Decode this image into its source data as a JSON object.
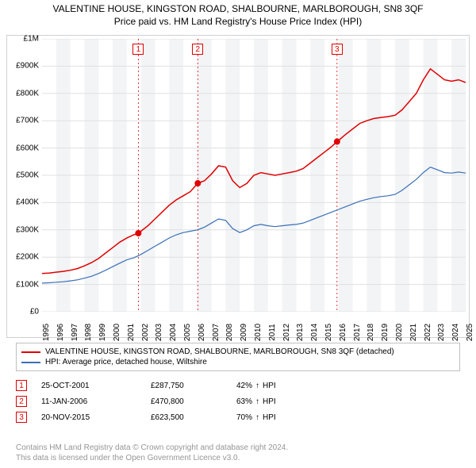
{
  "title": {
    "line1": "VALENTINE HOUSE, KINGSTON ROAD, SHALBOURNE, MARLBOROUGH, SN8 3QF",
    "line2": "Price paid vs. HM Land Registry's House Price Index (HPI)"
  },
  "chart": {
    "type": "line",
    "background_color": "#ffffff",
    "grid_color": "#e0e0e0",
    "grid_band_color": "#f2f4f6",
    "plot_border_color": "#d0d0d0",
    "x": {
      "min": 1995,
      "max": 2025,
      "ticks": [
        1995,
        1996,
        1997,
        1998,
        1999,
        2000,
        2001,
        2002,
        2003,
        2004,
        2005,
        2006,
        2007,
        2008,
        2009,
        2010,
        2011,
        2012,
        2013,
        2014,
        2015,
        2016,
        2017,
        2018,
        2019,
        2020,
        2021,
        2022,
        2023,
        2024,
        2025
      ]
    },
    "y": {
      "min": 0,
      "max": 1000000,
      "ticks": [
        0,
        100000,
        200000,
        300000,
        400000,
        500000,
        600000,
        700000,
        800000,
        900000,
        1000000
      ],
      "labels": [
        "£0",
        "£100K",
        "£200K",
        "£300K",
        "£400K",
        "£500K",
        "£600K",
        "£700K",
        "£800K",
        "£900K",
        "£1M"
      ]
    },
    "series": [
      {
        "id": "property",
        "label": "VALENTINE HOUSE, KINGSTON ROAD, SHALBOURNE, MARLBOROUGH, SN8 3QF (detached)",
        "color": "#e00000",
        "line_width": 1.5,
        "points": [
          [
            1995.0,
            140000
          ],
          [
            1995.5,
            142000
          ],
          [
            1996.0,
            145000
          ],
          [
            1996.5,
            148000
          ],
          [
            1997.0,
            152000
          ],
          [
            1997.5,
            158000
          ],
          [
            1998.0,
            168000
          ],
          [
            1998.5,
            180000
          ],
          [
            1999.0,
            195000
          ],
          [
            1999.5,
            215000
          ],
          [
            2000.0,
            235000
          ],
          [
            2000.5,
            255000
          ],
          [
            2001.0,
            270000
          ],
          [
            2001.5,
            282000
          ],
          [
            2001.82,
            287750
          ],
          [
            2002.0,
            295000
          ],
          [
            2002.5,
            315000
          ],
          [
            2003.0,
            340000
          ],
          [
            2003.5,
            365000
          ],
          [
            2004.0,
            390000
          ],
          [
            2004.5,
            410000
          ],
          [
            2005.0,
            425000
          ],
          [
            2005.5,
            440000
          ],
          [
            2006.03,
            470800
          ],
          [
            2006.5,
            480000
          ],
          [
            2007.0,
            505000
          ],
          [
            2007.5,
            535000
          ],
          [
            2008.0,
            530000
          ],
          [
            2008.5,
            480000
          ],
          [
            2009.0,
            455000
          ],
          [
            2009.5,
            470000
          ],
          [
            2010.0,
            500000
          ],
          [
            2010.5,
            510000
          ],
          [
            2011.0,
            505000
          ],
          [
            2011.5,
            500000
          ],
          [
            2012.0,
            505000
          ],
          [
            2012.5,
            510000
          ],
          [
            2013.0,
            515000
          ],
          [
            2013.5,
            525000
          ],
          [
            2014.0,
            545000
          ],
          [
            2014.5,
            565000
          ],
          [
            2015.0,
            585000
          ],
          [
            2015.5,
            605000
          ],
          [
            2015.89,
            623500
          ],
          [
            2016.0,
            628000
          ],
          [
            2016.5,
            650000
          ],
          [
            2017.0,
            670000
          ],
          [
            2017.5,
            690000
          ],
          [
            2018.0,
            700000
          ],
          [
            2018.5,
            708000
          ],
          [
            2019.0,
            712000
          ],
          [
            2019.5,
            715000
          ],
          [
            2020.0,
            720000
          ],
          [
            2020.5,
            740000
          ],
          [
            2021.0,
            770000
          ],
          [
            2021.5,
            800000
          ],
          [
            2022.0,
            850000
          ],
          [
            2022.5,
            890000
          ],
          [
            2023.0,
            870000
          ],
          [
            2023.5,
            850000
          ],
          [
            2024.0,
            845000
          ],
          [
            2024.5,
            850000
          ],
          [
            2025.0,
            840000
          ]
        ]
      },
      {
        "id": "hpi",
        "label": "HPI: Average price, detached house, Wiltshire",
        "color": "#3a6fb7",
        "line_width": 1.2,
        "points": [
          [
            1995.0,
            105000
          ],
          [
            1995.5,
            106000
          ],
          [
            1996.0,
            108000
          ],
          [
            1996.5,
            110000
          ],
          [
            1997.0,
            113000
          ],
          [
            1997.5,
            117000
          ],
          [
            1998.0,
            123000
          ],
          [
            1998.5,
            130000
          ],
          [
            1999.0,
            140000
          ],
          [
            1999.5,
            152000
          ],
          [
            2000.0,
            165000
          ],
          [
            2000.5,
            178000
          ],
          [
            2001.0,
            190000
          ],
          [
            2001.5,
            198000
          ],
          [
            2002.0,
            210000
          ],
          [
            2002.5,
            225000
          ],
          [
            2003.0,
            240000
          ],
          [
            2003.5,
            255000
          ],
          [
            2004.0,
            270000
          ],
          [
            2004.5,
            282000
          ],
          [
            2005.0,
            290000
          ],
          [
            2005.5,
            295000
          ],
          [
            2006.0,
            300000
          ],
          [
            2006.5,
            310000
          ],
          [
            2007.0,
            325000
          ],
          [
            2007.5,
            340000
          ],
          [
            2008.0,
            335000
          ],
          [
            2008.5,
            305000
          ],
          [
            2009.0,
            290000
          ],
          [
            2009.5,
            300000
          ],
          [
            2010.0,
            315000
          ],
          [
            2010.5,
            320000
          ],
          [
            2011.0,
            315000
          ],
          [
            2011.5,
            312000
          ],
          [
            2012.0,
            315000
          ],
          [
            2012.5,
            318000
          ],
          [
            2013.0,
            320000
          ],
          [
            2013.5,
            325000
          ],
          [
            2014.0,
            335000
          ],
          [
            2014.5,
            345000
          ],
          [
            2015.0,
            355000
          ],
          [
            2015.5,
            365000
          ],
          [
            2016.0,
            375000
          ],
          [
            2016.5,
            385000
          ],
          [
            2017.0,
            395000
          ],
          [
            2017.5,
            405000
          ],
          [
            2018.0,
            412000
          ],
          [
            2018.5,
            418000
          ],
          [
            2019.0,
            422000
          ],
          [
            2019.5,
            425000
          ],
          [
            2020.0,
            430000
          ],
          [
            2020.5,
            445000
          ],
          [
            2021.0,
            465000
          ],
          [
            2021.5,
            485000
          ],
          [
            2022.0,
            510000
          ],
          [
            2022.5,
            530000
          ],
          [
            2023.0,
            520000
          ],
          [
            2023.5,
            510000
          ],
          [
            2024.0,
            508000
          ],
          [
            2024.5,
            512000
          ],
          [
            2025.0,
            508000
          ]
        ]
      }
    ],
    "markers": [
      {
        "n": "1",
        "x": 2001.82,
        "y": 287750,
        "vline_color": "#e00000"
      },
      {
        "n": "2",
        "x": 2006.03,
        "y": 470800,
        "vline_color": "#e00000"
      },
      {
        "n": "3",
        "x": 2015.89,
        "y": 623500,
        "vline_color": "#e00000"
      }
    ],
    "marker_dot_radius": 4,
    "marker_dot_color": "#e00000",
    "vline_dash": "2,3"
  },
  "legend": {
    "rows": [
      {
        "color": "#e00000",
        "text": "VALENTINE HOUSE, KINGSTON ROAD, SHALBOURNE, MARLBOROUGH, SN8 3QF (detached)"
      },
      {
        "color": "#3a6fb7",
        "text": "HPI: Average price, detached house, Wiltshire"
      }
    ]
  },
  "transactions": [
    {
      "n": "1",
      "date": "25-OCT-2001",
      "price": "£287,750",
      "diff": "42%",
      "suffix": "HPI"
    },
    {
      "n": "2",
      "date": "11-JAN-2006",
      "price": "£470,800",
      "diff": "63%",
      "suffix": "HPI"
    },
    {
      "n": "3",
      "date": "20-NOV-2015",
      "price": "£623,500",
      "diff": "70%",
      "suffix": "HPI"
    }
  ],
  "footer": {
    "line1": "Contains HM Land Registry data © Crown copyright and database right 2024.",
    "line2": "This data is licensed under the Open Government Licence v3.0."
  }
}
